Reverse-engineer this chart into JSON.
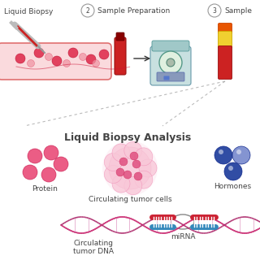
{
  "background_color": "#ffffff",
  "title": "Liquid Biopsy Analysis",
  "title_fontsize": 9,
  "title_bold": true,
  "section_labels": {
    "liquid_biopsy": "Liquid Biopsy",
    "sample_prep": "Sample Preparation",
    "sample": "Sample"
  },
  "analysis_labels": {
    "protein": "Protein",
    "ctc": "Circulating tumor cells",
    "hormones": "Hormones",
    "ctdna_line1": "Circulating",
    "ctdna_line2": "tumor DNA",
    "mirna": "miRNA"
  },
  "step_numbers": [
    "2",
    "3"
  ],
  "colors": {
    "vessel_fill": "#fadadd",
    "vessel_edge": "#e07070",
    "blood_cell_dark": "#e03050",
    "blood_cell_light": "#f090a0",
    "blood_tube": "#cc2222",
    "blood_tube_edge": "#991111",
    "tube_cap_dark": "#880000",
    "tube2_orange_cap": "#e85500",
    "tube2_yellow": "#f0d030",
    "tube2_red": "#cc2222",
    "centrifuge_body": "#c8e0e0",
    "centrifuge_lid": "#a0c8c8",
    "centrifuge_rotor": "#e0f0e0",
    "centrifuge_panel": "#8899bb",
    "protein_dark": "#e84070",
    "protein_light": "#f090b0",
    "ctc_outer": "#f8c8d8",
    "ctc_inner_dot": "#e05080",
    "hormone_dark": "#1a3a9a",
    "hormone_light": "#7788cc",
    "dna_strand1": "#cc3377",
    "dna_strand2": "#aa2266",
    "mirna_top": "#cc2233",
    "mirna_bottom": "#3388bb",
    "arrow": "#333333",
    "dashed_line": "#aaaaaa",
    "circle_border": "#999999",
    "text_color": "#444444",
    "syringe_gray": "#bbbbbb",
    "syringe_red": "#cc2222",
    "needle_gray": "#999999"
  }
}
